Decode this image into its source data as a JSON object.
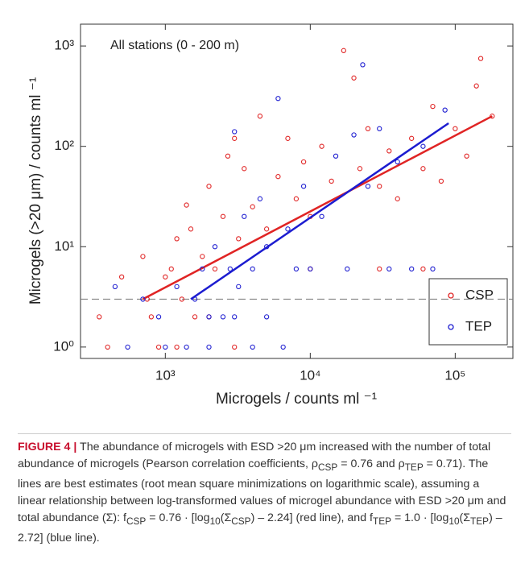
{
  "chart_data": {
    "type": "scatter",
    "annotation": "All stations (0 - 200 m)",
    "x_label": "Microgels / counts ml ⁻¹",
    "y_label": "Microgels (>20  μm) / counts ml ⁻¹",
    "log_x": true,
    "log_y": true,
    "xlim": [
      260,
      250000
    ],
    "ylim": [
      0.77,
      1650
    ],
    "xticks": [
      {
        "value": 1000,
        "label": "10³"
      },
      {
        "value": 10000,
        "label": "10⁴"
      },
      {
        "value": 100000,
        "label": "10⁵"
      }
    ],
    "yticks": [
      {
        "value": 1,
        "label": "10⁰"
      },
      {
        "value": 10,
        "label": "10¹"
      },
      {
        "value": 100,
        "label": "10²"
      },
      {
        "value": 1000,
        "label": "10³"
      }
    ],
    "threshold": 3,
    "legend": "lower right",
    "series": [
      {
        "name": "CSP",
        "color": "#e02424",
        "x": [
          350,
          400,
          500,
          700,
          750,
          900,
          1000,
          1100,
          1200,
          1300,
          1400,
          1500,
          1600,
          1800,
          2000,
          2200,
          2500,
          2700,
          3000,
          3200,
          3500,
          4000,
          4500,
          5000,
          6000,
          7000,
          8000,
          9000,
          10000,
          12000,
          14000,
          17000,
          20000,
          22000,
          25000,
          30000,
          35000,
          40000,
          50000,
          60000,
          70000,
          80000,
          100000,
          120000,
          140000,
          150000,
          180000,
          60000,
          30000,
          10000,
          2000,
          3000,
          800,
          1200
        ],
        "values": [
          2,
          1,
          5,
          8,
          3,
          1,
          5,
          6,
          12,
          3,
          26,
          15,
          2,
          8,
          40,
          6,
          20,
          80,
          120,
          12,
          60,
          25,
          200,
          15,
          50,
          120,
          30,
          70,
          20,
          100,
          45,
          900,
          480,
          60,
          150,
          40,
          90,
          30,
          120,
          60,
          250,
          45,
          150,
          80,
          400,
          750,
          200,
          6,
          6,
          6,
          2,
          1,
          2,
          1
        ],
        "fit_x": [
          700,
          180000
        ],
        "fit_y": [
          3,
          200
        ]
      },
      {
        "name": "TEP",
        "color": "#1c1cd0",
        "x": [
          450,
          550,
          700,
          900,
          1000,
          1200,
          1400,
          1600,
          1800,
          2000,
          2200,
          2500,
          2800,
          3000,
          3200,
          3500,
          4000,
          4500,
          5000,
          6000,
          6500,
          7000,
          8000,
          9000,
          10000,
          12000,
          15000,
          18000,
          20000,
          23000,
          25000,
          30000,
          35000,
          40000,
          50000,
          60000,
          70000,
          85000,
          3000,
          2000,
          4000,
          5000
        ],
        "values": [
          4,
          1,
          3,
          2,
          1,
          4,
          1,
          3,
          6,
          1,
          10,
          2,
          6,
          140,
          4,
          20,
          6,
          30,
          2,
          300,
          1,
          15,
          6,
          40,
          6,
          20,
          80,
          6,
          130,
          650,
          40,
          150,
          6,
          70,
          6,
          100,
          6,
          230,
          2,
          2,
          1,
          10
        ],
        "fit_x": [
          1500,
          90000
        ],
        "fit_y": [
          3,
          170
        ]
      }
    ]
  },
  "caption": {
    "label": "FIGURE 4 |",
    "text": [
      "The abundance of microgels with ESD >20 μm increased with the number of total abundance of microgels (Pearson correlation coefficients, ρ",
      "CSP",
      " = 0.76 and ρ",
      "TEP",
      " = 0.71). The lines are best estimates (root mean square minimizations on logarithmic scale), assuming a linear relationship between log-transformed values of microgel abundance with ESD >20 μm and total abundance (Σ): f",
      "CSP",
      " = 0.76 · [log",
      "10",
      "(Σ",
      "CSP",
      ") – 2.24] (red line), and f",
      "TEP",
      " = 1.0 · [log",
      "10",
      "(Σ",
      "TEP",
      ") – 2.72] (blue line)."
    ]
  }
}
